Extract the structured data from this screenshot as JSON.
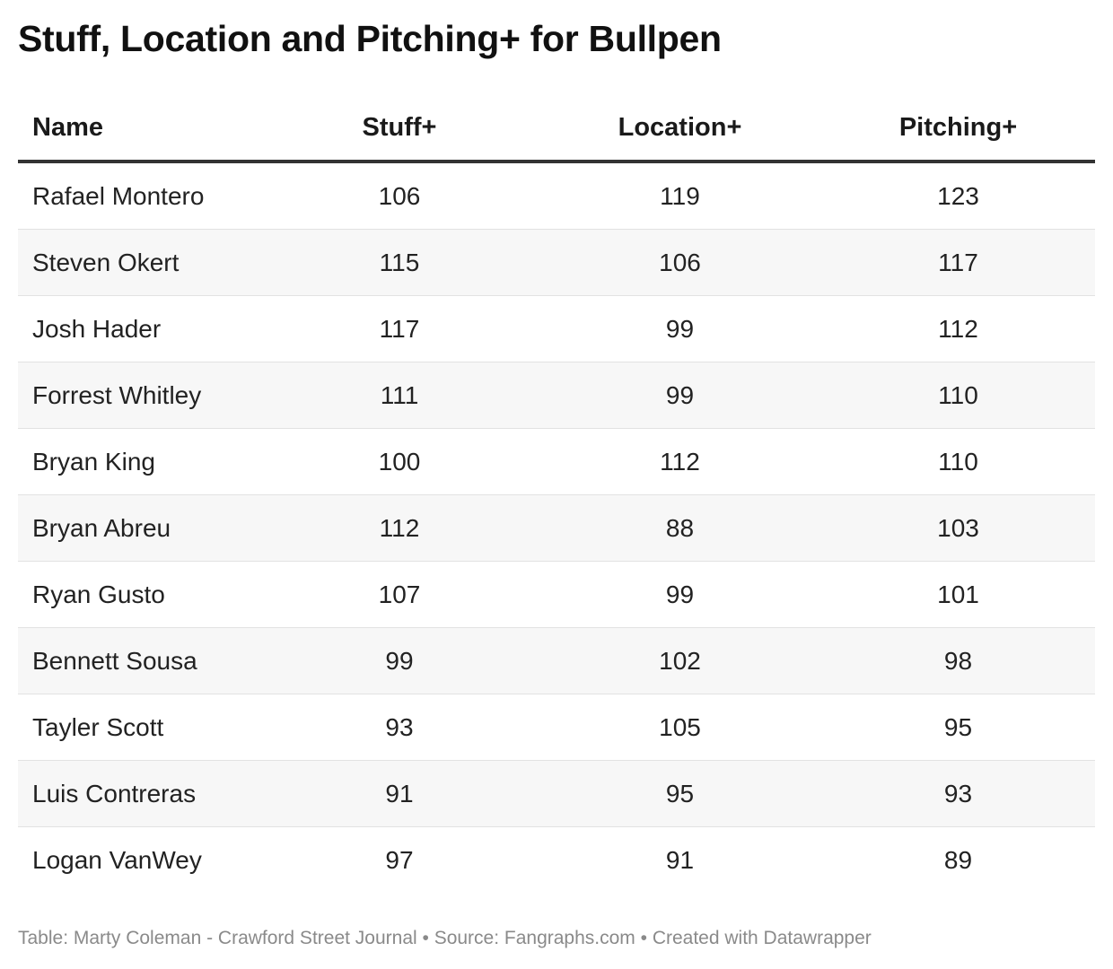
{
  "title": "Stuff, Location and Pitching+ for Bullpen",
  "footer": "Table: Marty Coleman - Crawford Street Journal • Source: Fangraphs.com • Created with Datawrapper",
  "chart_data": {
    "type": "table",
    "title": "Stuff, Location and Pitching+ for Bullpen",
    "columns": [
      "Name",
      "Stuff+",
      "Location+",
      "Pitching+"
    ],
    "rows": [
      [
        "Rafael Montero",
        "106",
        "119",
        "123"
      ],
      [
        "Steven Okert",
        "115",
        "106",
        "117"
      ],
      [
        "Josh Hader",
        "117",
        "99",
        "112"
      ],
      [
        "Forrest Whitley",
        "111",
        "99",
        "110"
      ],
      [
        "Bryan King",
        "100",
        "112",
        "110"
      ],
      [
        "Bryan Abreu",
        "112",
        "88",
        "103"
      ],
      [
        "Ryan Gusto",
        "107",
        "99",
        "101"
      ],
      [
        "Bennett Sousa",
        "99",
        "102",
        "98"
      ],
      [
        "Tayler Scott",
        "93",
        "105",
        "95"
      ],
      [
        "Luis Contreras",
        "91",
        "95",
        "93"
      ],
      [
        "Logan VanWey",
        "97",
        "91",
        "89"
      ]
    ]
  }
}
